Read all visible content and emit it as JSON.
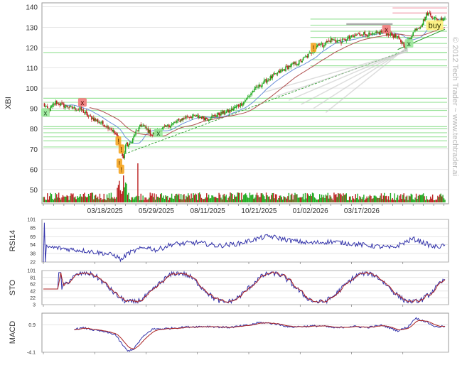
{
  "watermark": "© 2012 Tech Trader ~ www.techtrader.ai",
  "colors": {
    "up": "#22aa22",
    "down": "#bb2222",
    "grid": "#cccccc",
    "support": "#8ee08e",
    "resistance": "#f2a8b4",
    "indicator": "#3333aa",
    "signal": "#aa2222",
    "ma_blue": "#6a8fd8",
    "ma_red": "#b05050",
    "ma_green": "#2a9a2a"
  },
  "chart_data": [
    {
      "type": "candlestick",
      "name": "price",
      "ylabel": "XBI",
      "ylim": [
        43,
        142
      ],
      "yticks": [
        50,
        60,
        70,
        80,
        90,
        100,
        110,
        120,
        130,
        140
      ],
      "x_date_labels": [
        "03/18/2025",
        "05/29/2025",
        "08/11/2025",
        "10/21/2025",
        "01/02/2026",
        "03/17/2026"
      ],
      "x_date_label_index": [
        60,
        110,
        160,
        210,
        260,
        310
      ],
      "bars": 392,
      "anchors": [
        [
          0,
          92
        ],
        [
          5,
          89
        ],
        [
          12,
          93
        ],
        [
          22,
          91
        ],
        [
          38,
          89
        ],
        [
          44,
          86
        ],
        [
          56,
          83
        ],
        [
          66,
          80
        ],
        [
          72,
          76
        ],
        [
          74,
          73
        ],
        [
          76,
          68
        ],
        [
          78,
          65
        ],
        [
          80,
          72
        ],
        [
          84,
          72
        ],
        [
          90,
          78
        ],
        [
          96,
          82
        ],
        [
          100,
          80
        ],
        [
          106,
          77
        ],
        [
          112,
          79
        ],
        [
          124,
          82
        ],
        [
          140,
          86
        ],
        [
          150,
          86
        ],
        [
          160,
          85
        ],
        [
          170,
          87
        ],
        [
          182,
          89
        ],
        [
          195,
          93
        ],
        [
          205,
          99
        ],
        [
          215,
          103
        ],
        [
          230,
          108
        ],
        [
          240,
          111
        ],
        [
          250,
          113
        ],
        [
          260,
          117
        ],
        [
          268,
          122
        ],
        [
          272,
          121
        ],
        [
          280,
          124
        ],
        [
          290,
          123
        ],
        [
          300,
          125
        ],
        [
          310,
          127
        ],
        [
          320,
          126
        ],
        [
          330,
          128
        ],
        [
          340,
          126
        ],
        [
          344,
          125
        ],
        [
          352,
          121
        ],
        [
          356,
          124
        ],
        [
          362,
          129
        ],
        [
          368,
          131
        ],
        [
          374,
          137
        ],
        [
          380,
          135
        ],
        [
          385,
          133
        ],
        [
          391,
          135
        ]
      ],
      "volume_max_note": "scaled bars",
      "markers": [
        {
          "type": "sell",
          "label": "x",
          "index": 38,
          "price": 93
        },
        {
          "type": "buy",
          "label": "x",
          "index": 2,
          "price": 88
        },
        {
          "type": "buy",
          "label": "x",
          "index": 112,
          "price": 78
        },
        {
          "type": "buy",
          "label": "x",
          "index": 356,
          "price": 122
        },
        {
          "type": "sell",
          "label": "x",
          "index": 334,
          "price": 129
        },
        {
          "type": "alert",
          "label": "!",
          "index": 263,
          "price": 120
        },
        {
          "type": "alert",
          "label": "!",
          "index": 73,
          "price": 74
        },
        {
          "type": "alert",
          "label": "!",
          "index": 76,
          "price": 70
        },
        {
          "type": "alert",
          "label": "!",
          "index": 74,
          "price": 63
        },
        {
          "type": "alert",
          "label": "!",
          "index": 76,
          "price": 60
        },
        {
          "type": "buy",
          "label": "buy",
          "index": 381,
          "price": 131
        }
      ],
      "support_levels": [
        117.5,
        95,
        93,
        89,
        86,
        81,
        80,
        78,
        76,
        74,
        71
      ],
      "support_levels_right": [
        134,
        131,
        128,
        125,
        122,
        117.5,
        114,
        111
      ],
      "resistance_levels": [
        139.5,
        137
      ]
    },
    {
      "type": "line",
      "name": "rsi",
      "ylabel": "RSI14",
      "ylim": [
        22,
        101
      ],
      "yticks": [
        101,
        85,
        69,
        54,
        38,
        22
      ],
      "anchors": [
        [
          0,
          22
        ],
        [
          1,
          95
        ],
        [
          2,
          22
        ],
        [
          3,
          50
        ],
        [
          20,
          47
        ],
        [
          40,
          43
        ],
        [
          60,
          38
        ],
        [
          70,
          34
        ],
        [
          76,
          26
        ],
        [
          82,
          38
        ],
        [
          100,
          50
        ],
        [
          110,
          44
        ],
        [
          125,
          55
        ],
        [
          150,
          58
        ],
        [
          170,
          52
        ],
        [
          190,
          56
        ],
        [
          210,
          66
        ],
        [
          220,
          70
        ],
        [
          240,
          62
        ],
        [
          260,
          57
        ],
        [
          280,
          60
        ],
        [
          300,
          56
        ],
        [
          320,
          52
        ],
        [
          340,
          48
        ],
        [
          350,
          57
        ],
        [
          360,
          65
        ],
        [
          370,
          58
        ],
        [
          380,
          50
        ],
        [
          391,
          52
        ]
      ]
    },
    {
      "type": "line",
      "name": "sto",
      "ylabel": "STO",
      "ylim": [
        3,
        101
      ],
      "yticks": [
        101,
        81,
        62,
        42,
        22,
        3
      ],
      "flat_start_value": 48
    },
    {
      "type": "line",
      "name": "macd",
      "ylabel": "MACD",
      "ylim": [
        -4.1,
        3.0
      ],
      "yticks": [
        0.9,
        -4.1
      ],
      "anchors": [
        [
          30,
          0.1
        ],
        [
          40,
          0.3
        ],
        [
          50,
          -0.1
        ],
        [
          60,
          -0.4
        ],
        [
          70,
          -0.9
        ],
        [
          76,
          -2.5
        ],
        [
          82,
          -3.9
        ],
        [
          88,
          -3.5
        ],
        [
          96,
          -1.5
        ],
        [
          106,
          0.1
        ],
        [
          120,
          0.2
        ],
        [
          140,
          0.5
        ],
        [
          160,
          0.6
        ],
        [
          180,
          0.4
        ],
        [
          200,
          0.8
        ],
        [
          210,
          1.3
        ],
        [
          225,
          1.1
        ],
        [
          240,
          0.5
        ],
        [
          255,
          0.6
        ],
        [
          270,
          0.7
        ],
        [
          285,
          0.3
        ],
        [
          300,
          0.6
        ],
        [
          315,
          0.4
        ],
        [
          330,
          0.8
        ],
        [
          345,
          -0.2
        ],
        [
          355,
          0.5
        ],
        [
          362,
          2.1
        ],
        [
          372,
          1.5
        ],
        [
          382,
          0.5
        ],
        [
          391,
          0.6
        ]
      ]
    }
  ]
}
